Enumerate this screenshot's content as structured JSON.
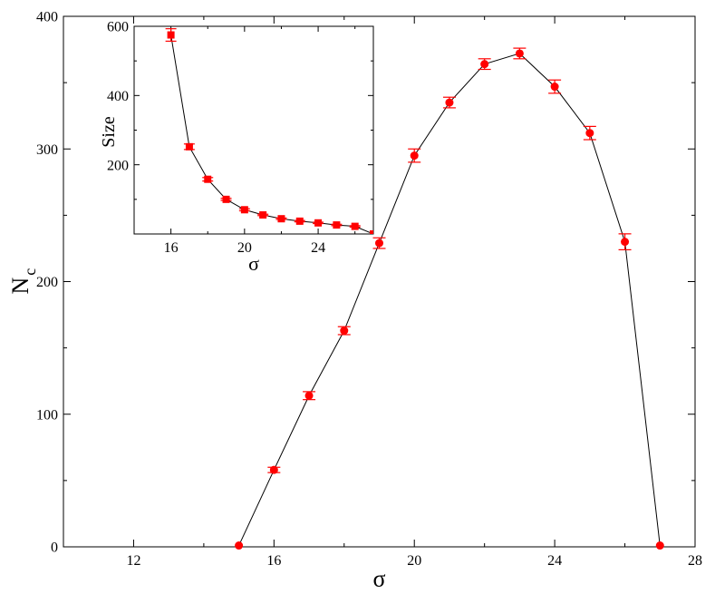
{
  "chart_data": [
    {
      "id": "main",
      "type": "scatter",
      "xlabel": "σ",
      "ylabel": "N",
      "ylabel_subscript": "c",
      "xlim": [
        10,
        28
      ],
      "ylim": [
        0,
        400
      ],
      "xticks": [
        12,
        16,
        20,
        24,
        28
      ],
      "xminor": [
        10,
        14,
        18,
        22,
        26
      ],
      "yticks": [
        0,
        100,
        200,
        300,
        400
      ],
      "yminor": [
        50,
        150,
        250,
        350
      ],
      "grid": false,
      "marker": "circle",
      "marker_color": "#ff0000",
      "line_color": "#000000",
      "series": [
        {
          "x": [
            15,
            16,
            17,
            18,
            19,
            20,
            21,
            22,
            23,
            24,
            25,
            26,
            27
          ],
          "y": [
            1,
            58,
            114,
            163,
            229,
            295,
            335,
            364,
            372,
            347,
            312,
            230,
            1
          ],
          "err": [
            0,
            2,
            3,
            3,
            4,
            5,
            4,
            4,
            4,
            5,
            5,
            6,
            0
          ]
        }
      ]
    },
    {
      "id": "inset",
      "type": "scatter",
      "xlabel": "σ",
      "ylabel": "Size",
      "xlim": [
        14,
        27
      ],
      "ylim": [
        0,
        600
      ],
      "xticks": [
        16,
        20,
        24
      ],
      "xminor": [
        14,
        18,
        22,
        26
      ],
      "yticks": [
        200,
        400,
        600
      ],
      "yminor": [
        100,
        300,
        500
      ],
      "grid": false,
      "marker": "square",
      "marker_color": "#ff0000",
      "line_color": "#000000",
      "series": [
        {
          "x": [
            16,
            17,
            18,
            19,
            20,
            21,
            22,
            23,
            24,
            25,
            26,
            27
          ],
          "y": [
            575,
            252,
            158,
            100,
            70,
            55,
            44,
            37,
            32,
            26,
            22,
            0
          ],
          "err": [
            18,
            8,
            5,
            3,
            3,
            2,
            2,
            2,
            2,
            2,
            2,
            0
          ]
        }
      ]
    }
  ]
}
